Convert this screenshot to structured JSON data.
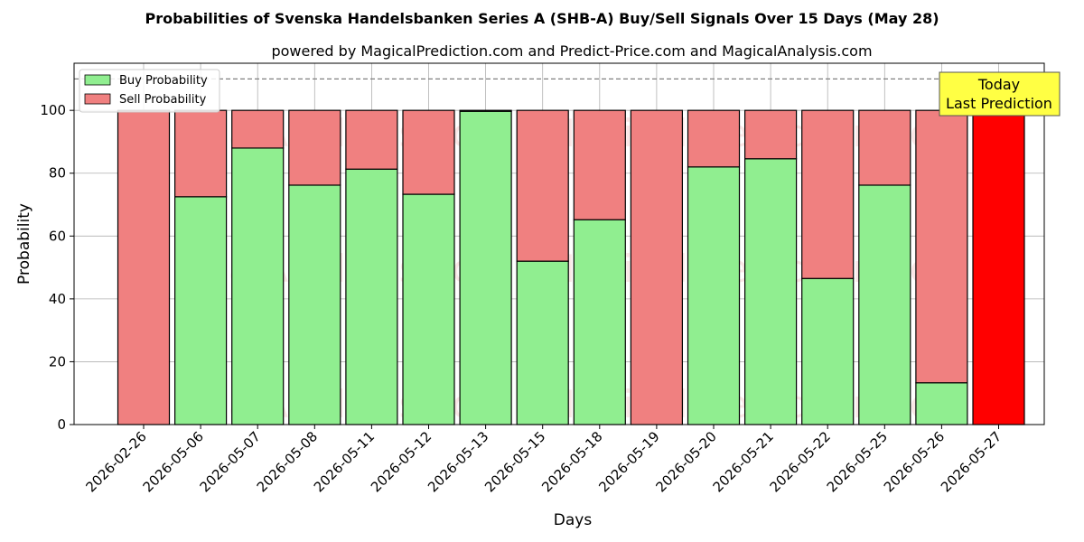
{
  "chart_data": {
    "type": "bar",
    "stacked": true,
    "title": "Probabilities of Svenska Handelsbanken Series A (SHB-A) Buy/Sell Signals Over 15 Days (May 28)",
    "subtitle": "powered by MagicalPrediction.com and Predict-Price.com and MagicalAnalysis.com",
    "xlabel": "Days",
    "ylabel": "Probability",
    "ylim": [
      0,
      115
    ],
    "yticks": [
      0,
      20,
      40,
      60,
      80,
      100
    ],
    "grid": true,
    "legend_position": "top-left",
    "reference_line": 110,
    "categories": [
      "2026-02-26",
      "2026-05-06",
      "2026-05-07",
      "2026-05-08",
      "2026-05-11",
      "2026-05-12",
      "2026-05-13",
      "2026-05-15",
      "2026-05-18",
      "2026-05-19",
      "2026-05-20",
      "2026-05-21",
      "2026-05-22",
      "2026-05-25",
      "2026-05-26",
      "2026-05-27"
    ],
    "series": [
      {
        "name": "Buy Probability",
        "color": "#90ee90",
        "values": [
          0,
          72.5,
          88,
          76.2,
          81.3,
          73.3,
          99.7,
          52,
          65.2,
          0,
          82,
          84.6,
          46.5,
          76.2,
          13.3,
          0
        ]
      },
      {
        "name": "Sell Probability",
        "color": "#f08080",
        "values": [
          100,
          27.5,
          12,
          23.8,
          18.7,
          26.7,
          0.3,
          48,
          34.8,
          100,
          18,
          15.4,
          53.5,
          23.8,
          86.7,
          100
        ]
      }
    ],
    "highlight": {
      "category": "2026-05-27",
      "color": "#ff0000"
    },
    "annotation": {
      "line1": "Today",
      "line2": "Last Prediction"
    },
    "watermarks": [
      "MagicalAnalysis.com",
      "MagicalPrediction.com"
    ]
  }
}
